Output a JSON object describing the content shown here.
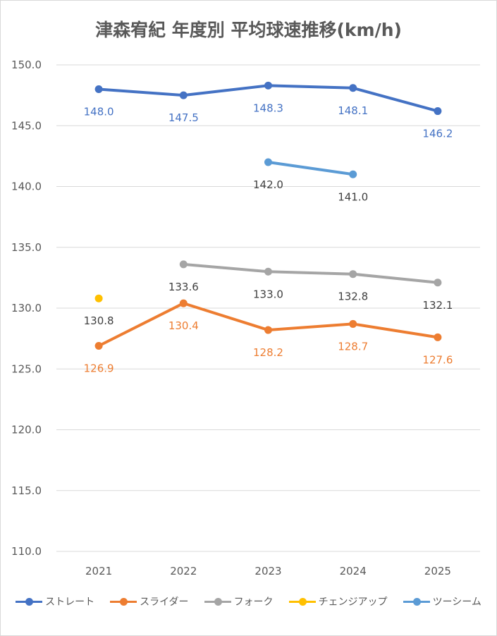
{
  "chart_data": {
    "type": "line",
    "title": "津森宥紀 年度別 平均球速推移(km/h)",
    "categories": [
      "2021",
      "2022",
      "2023",
      "2024",
      "2025"
    ],
    "ylim": [
      110.0,
      150.0
    ],
    "yticks": [
      "150.0",
      "145.0",
      "140.0",
      "135.0",
      "130.0",
      "125.0",
      "120.0",
      "115.0",
      "110.0"
    ],
    "grid": true,
    "legend_position": "bottom",
    "series": [
      {
        "name": "ストレート",
        "color": "#4472C4",
        "values": [
          148.0,
          147.5,
          148.3,
          148.1,
          146.2
        ],
        "labels": [
          "148.0",
          "147.5",
          "148.3",
          "148.1",
          "146.2"
        ],
        "label_color": "#4472C4",
        "label_pos": "below"
      },
      {
        "name": "スライダー",
        "color": "#ED7D31",
        "values": [
          126.9,
          130.4,
          128.2,
          128.7,
          127.6
        ],
        "labels": [
          "126.9",
          "130.4",
          "128.2",
          "128.7",
          "127.6"
        ],
        "label_color": "#ED7D31",
        "label_pos": "below"
      },
      {
        "name": "フォーク",
        "color": "#A5A5A5",
        "values": [
          null,
          133.6,
          133.0,
          132.8,
          132.1
        ],
        "labels": [
          null,
          "133.6",
          "133.0",
          "132.8",
          "132.1"
        ],
        "label_color": "#404040",
        "label_pos": "below"
      },
      {
        "name": "チェンジアップ",
        "color": "#FFC000",
        "values": [
          130.8,
          null,
          null,
          null,
          null
        ],
        "labels": [
          "130.8",
          null,
          null,
          null,
          null
        ],
        "label_color": "#404040",
        "label_pos": "below"
      },
      {
        "name": "ツーシーム",
        "color": "#5B9BD5",
        "values": [
          null,
          null,
          142.0,
          141.0,
          null
        ],
        "labels": [
          null,
          null,
          "142.0",
          "141.0",
          null
        ],
        "label_color": "#404040",
        "label_pos": "below"
      }
    ]
  }
}
